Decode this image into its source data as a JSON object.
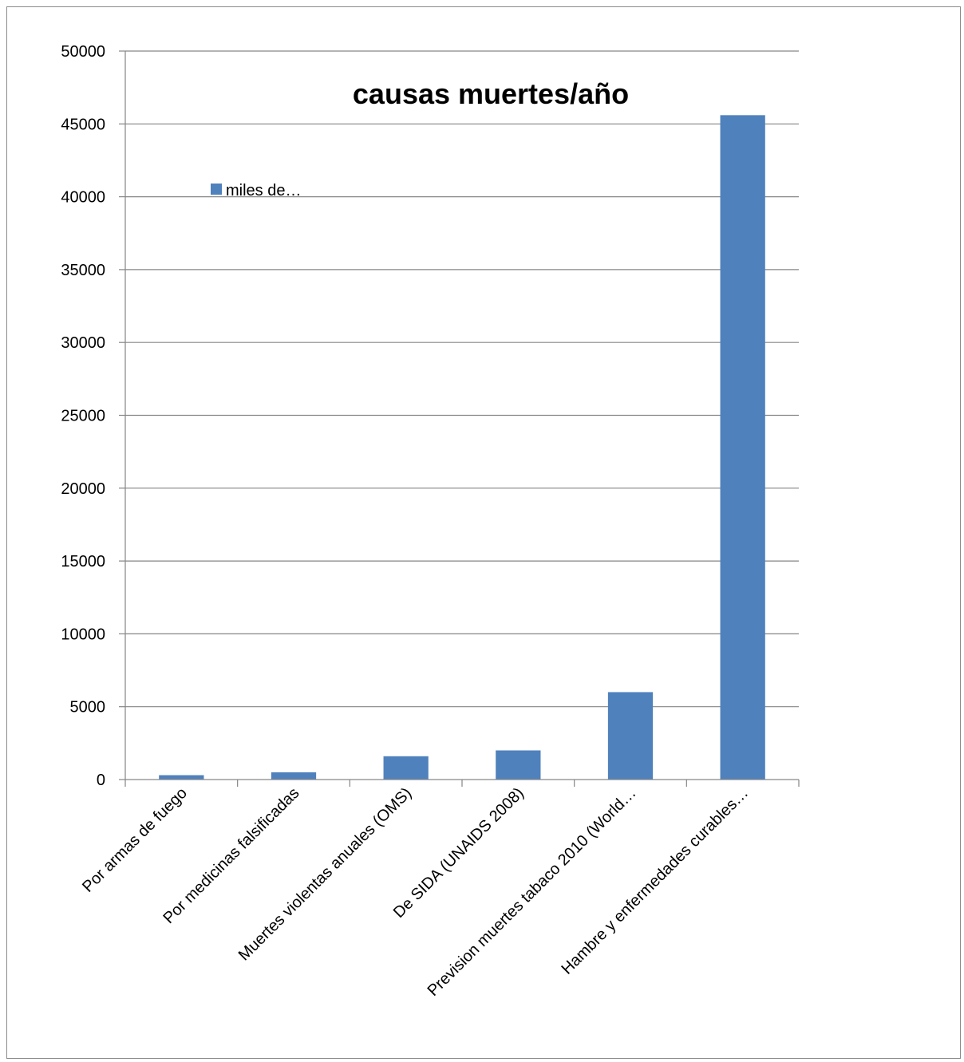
{
  "chart_data": {
    "type": "bar",
    "title": "causas muertes/año",
    "categories": [
      "Por armas de fuego",
      "Por medicinas falsificadas",
      "Muertes violentas anuales (OMS)",
      "De SIDA (UNAIDS 2008)",
      "Prevision muertes tabaco 2010 (World…",
      "Hambre y enfermedades curables…"
    ],
    "series": [
      {
        "name": "miles de…",
        "values": [
          300,
          500,
          1600,
          2000,
          6000,
          45600
        ]
      }
    ],
    "ylim": [
      0,
      50000
    ],
    "yticks": [
      0,
      5000,
      10000,
      15000,
      20000,
      25000,
      30000,
      35000,
      40000,
      45000,
      50000
    ],
    "grid": true,
    "legend": "top-left inside plot",
    "bar_color": "#4f81bd",
    "grid_color": "#868686"
  }
}
